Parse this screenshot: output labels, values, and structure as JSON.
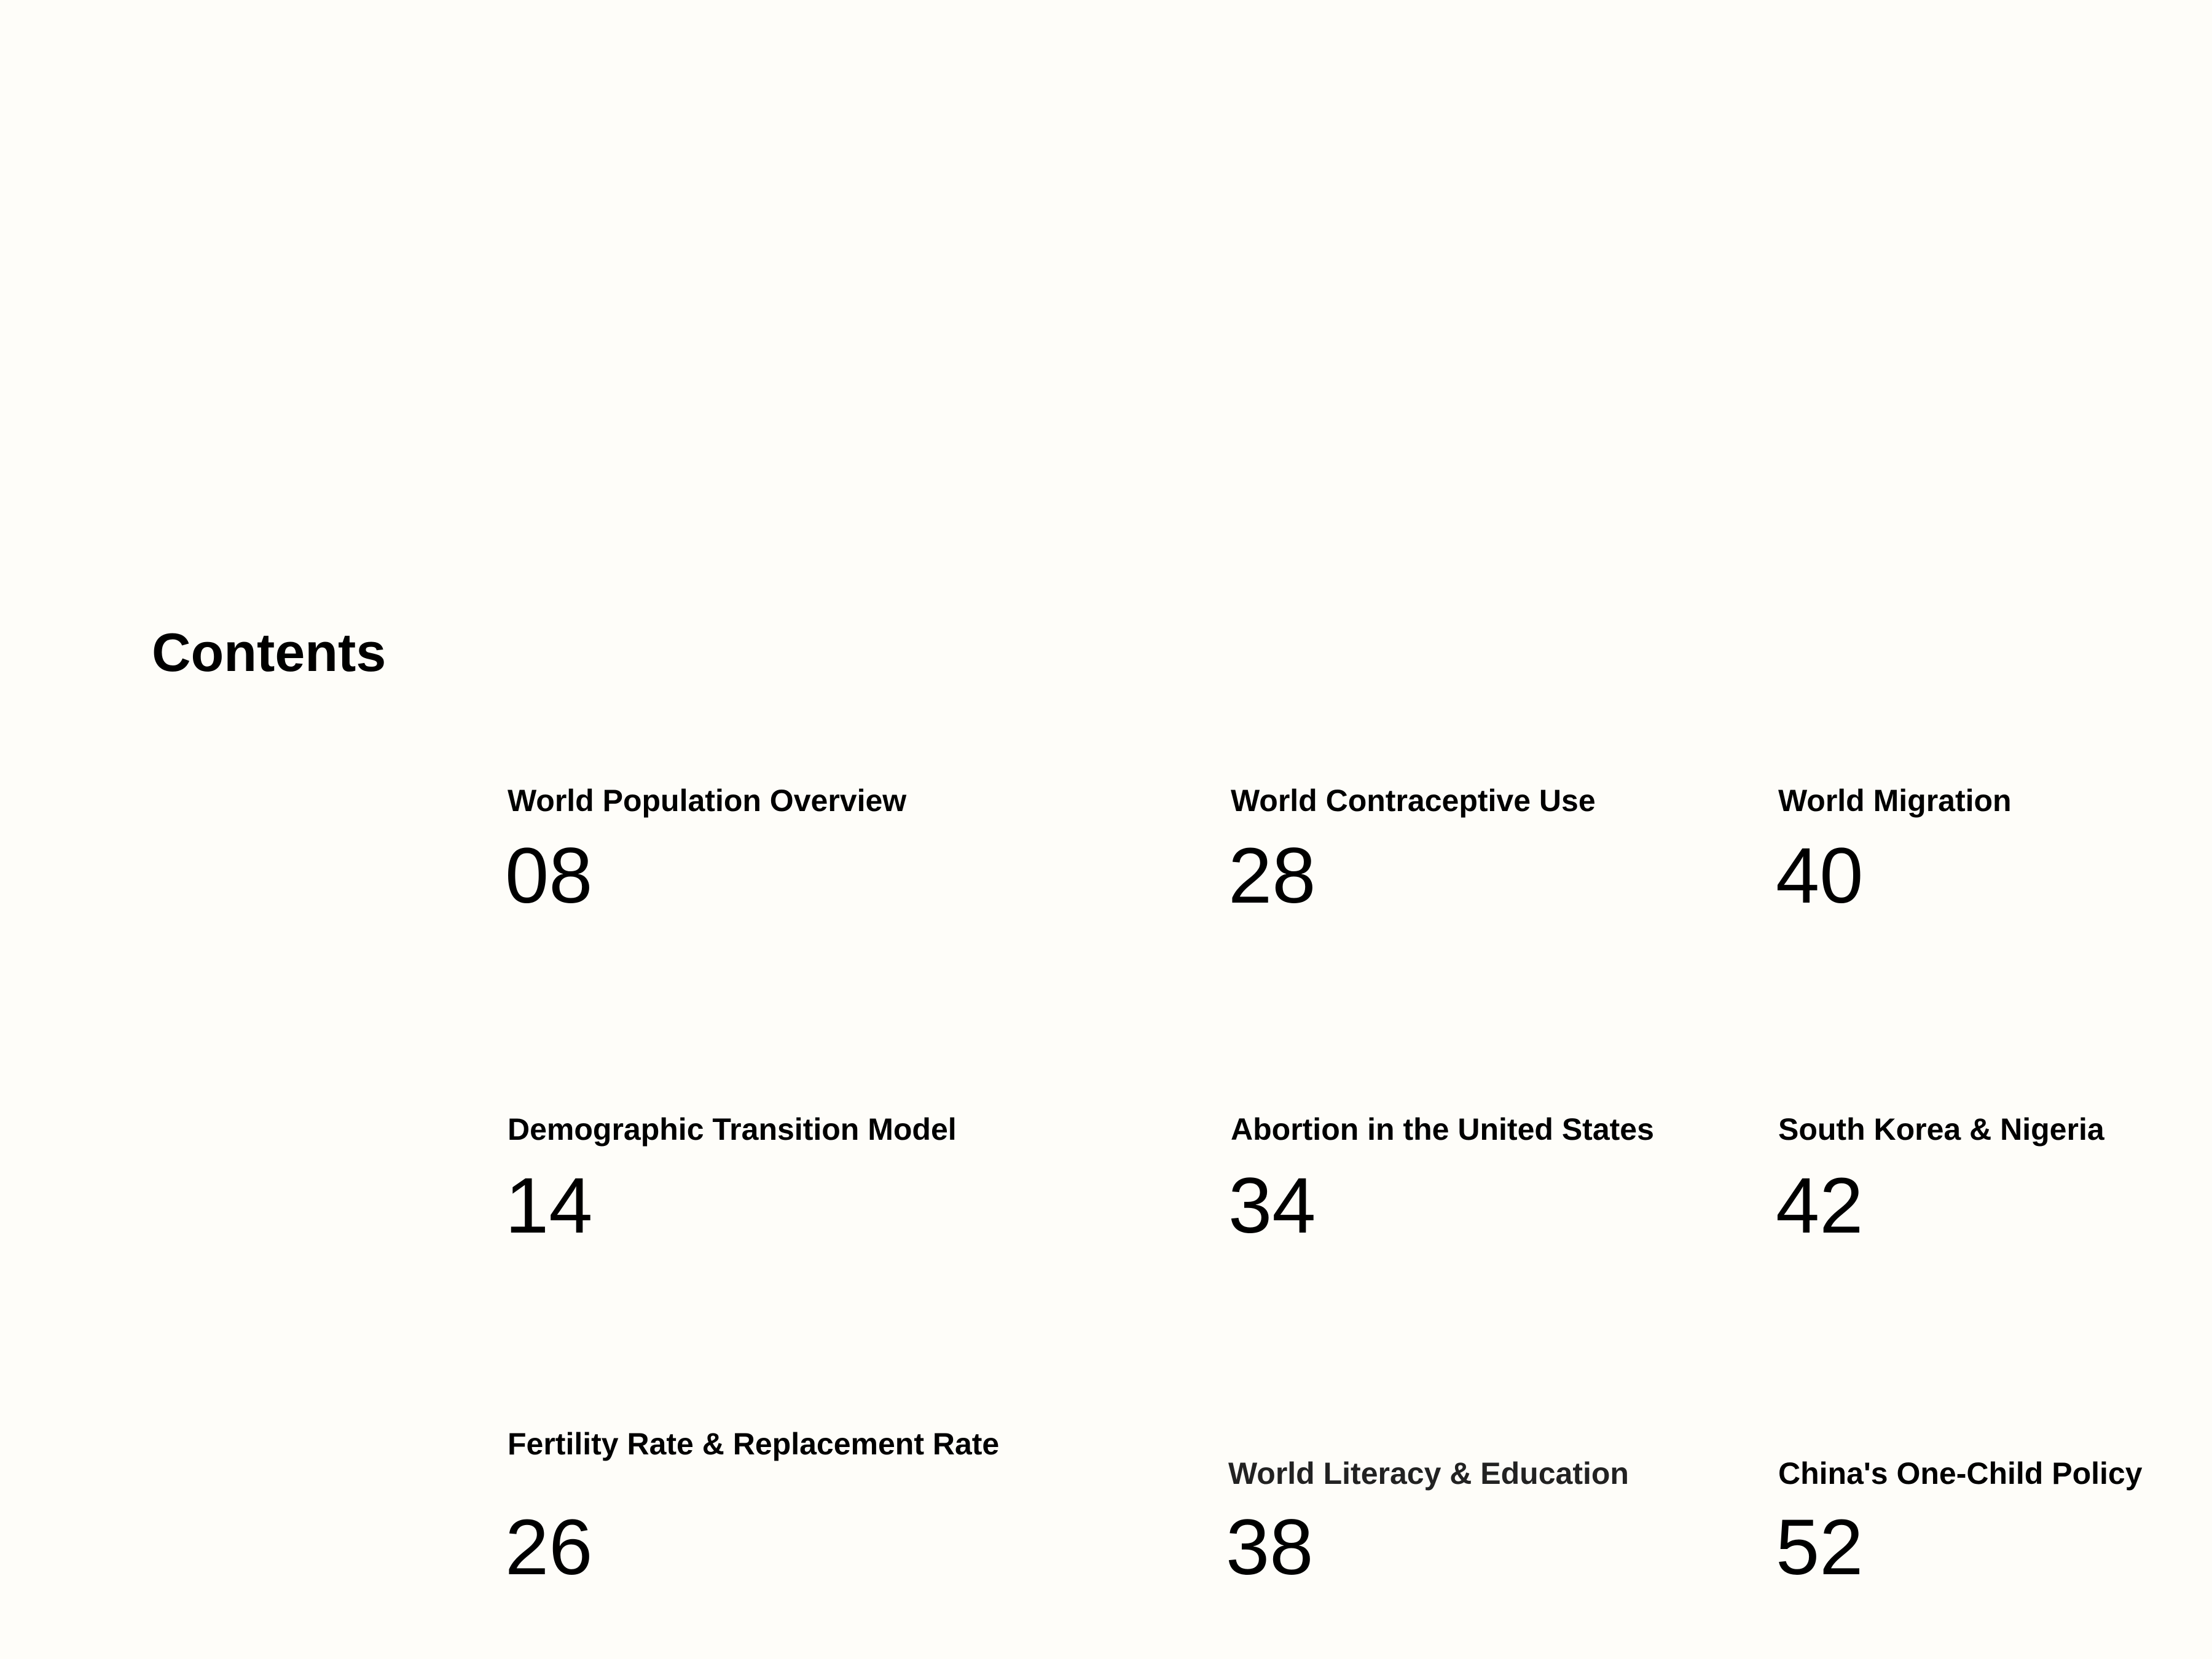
{
  "heading": "Contents",
  "entries": [
    {
      "title": "World Population Overview",
      "page": "08"
    },
    {
      "title": "Demographic Transition Model",
      "page": "14"
    },
    {
      "title": "Fertility Rate & Replacement Rate",
      "page": "26"
    },
    {
      "title": "World Contraceptive Use",
      "page": "28"
    },
    {
      "title": "Abortion in the United States",
      "page": "34"
    },
    {
      "title": "World Literacy & Education",
      "page": "38"
    },
    {
      "title": "World Migration",
      "page": "40"
    },
    {
      "title": "South Korea & Nigeria",
      "page": "42"
    },
    {
      "title": "China's One-Child Policy",
      "page": "52"
    }
  ]
}
